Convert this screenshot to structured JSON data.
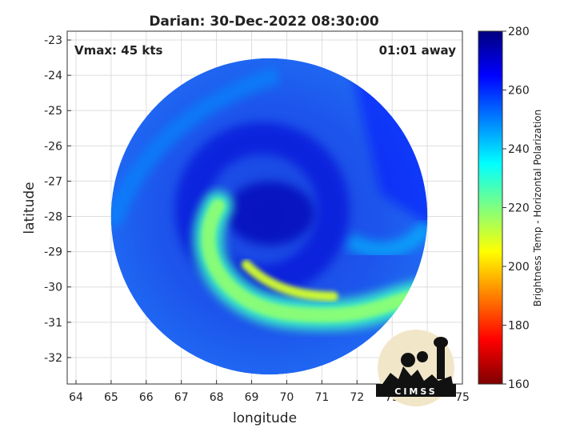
{
  "chart_data": {
    "type": "heatmap",
    "title": "Darian: 30-Dec-2022 08:30:00",
    "xlabel": "longitude",
    "ylabel": "latitude",
    "xlim": [
      63.75,
      75
    ],
    "ylim": [
      -32.75,
      -22.75
    ],
    "x_ticks": [
      64,
      65,
      66,
      67,
      68,
      69,
      70,
      71,
      72,
      73,
      74,
      75
    ],
    "y_ticks": [
      -23,
      -24,
      -25,
      -26,
      -27,
      -28,
      -29,
      -30,
      -31,
      -32
    ],
    "grid": true,
    "colorbar": {
      "label": "Brightness Temp - Horizontal Polarization",
      "range": [
        160,
        280
      ],
      "ticks": [
        280,
        260,
        240,
        220,
        200,
        180,
        160
      ],
      "colormap": "jet"
    },
    "annotations": {
      "vmax": "Vmax: 45 kts",
      "time_offset": "01:01 away"
    },
    "features": {
      "swath_center": [
        69.5,
        -28.0
      ],
      "swath_radius_deg": 5.7,
      "eye_center": [
        69.3,
        -27.8
      ],
      "rainband_min_temp": 210,
      "background_temp": 258
    }
  },
  "logo": {
    "text": "CIMSS"
  }
}
